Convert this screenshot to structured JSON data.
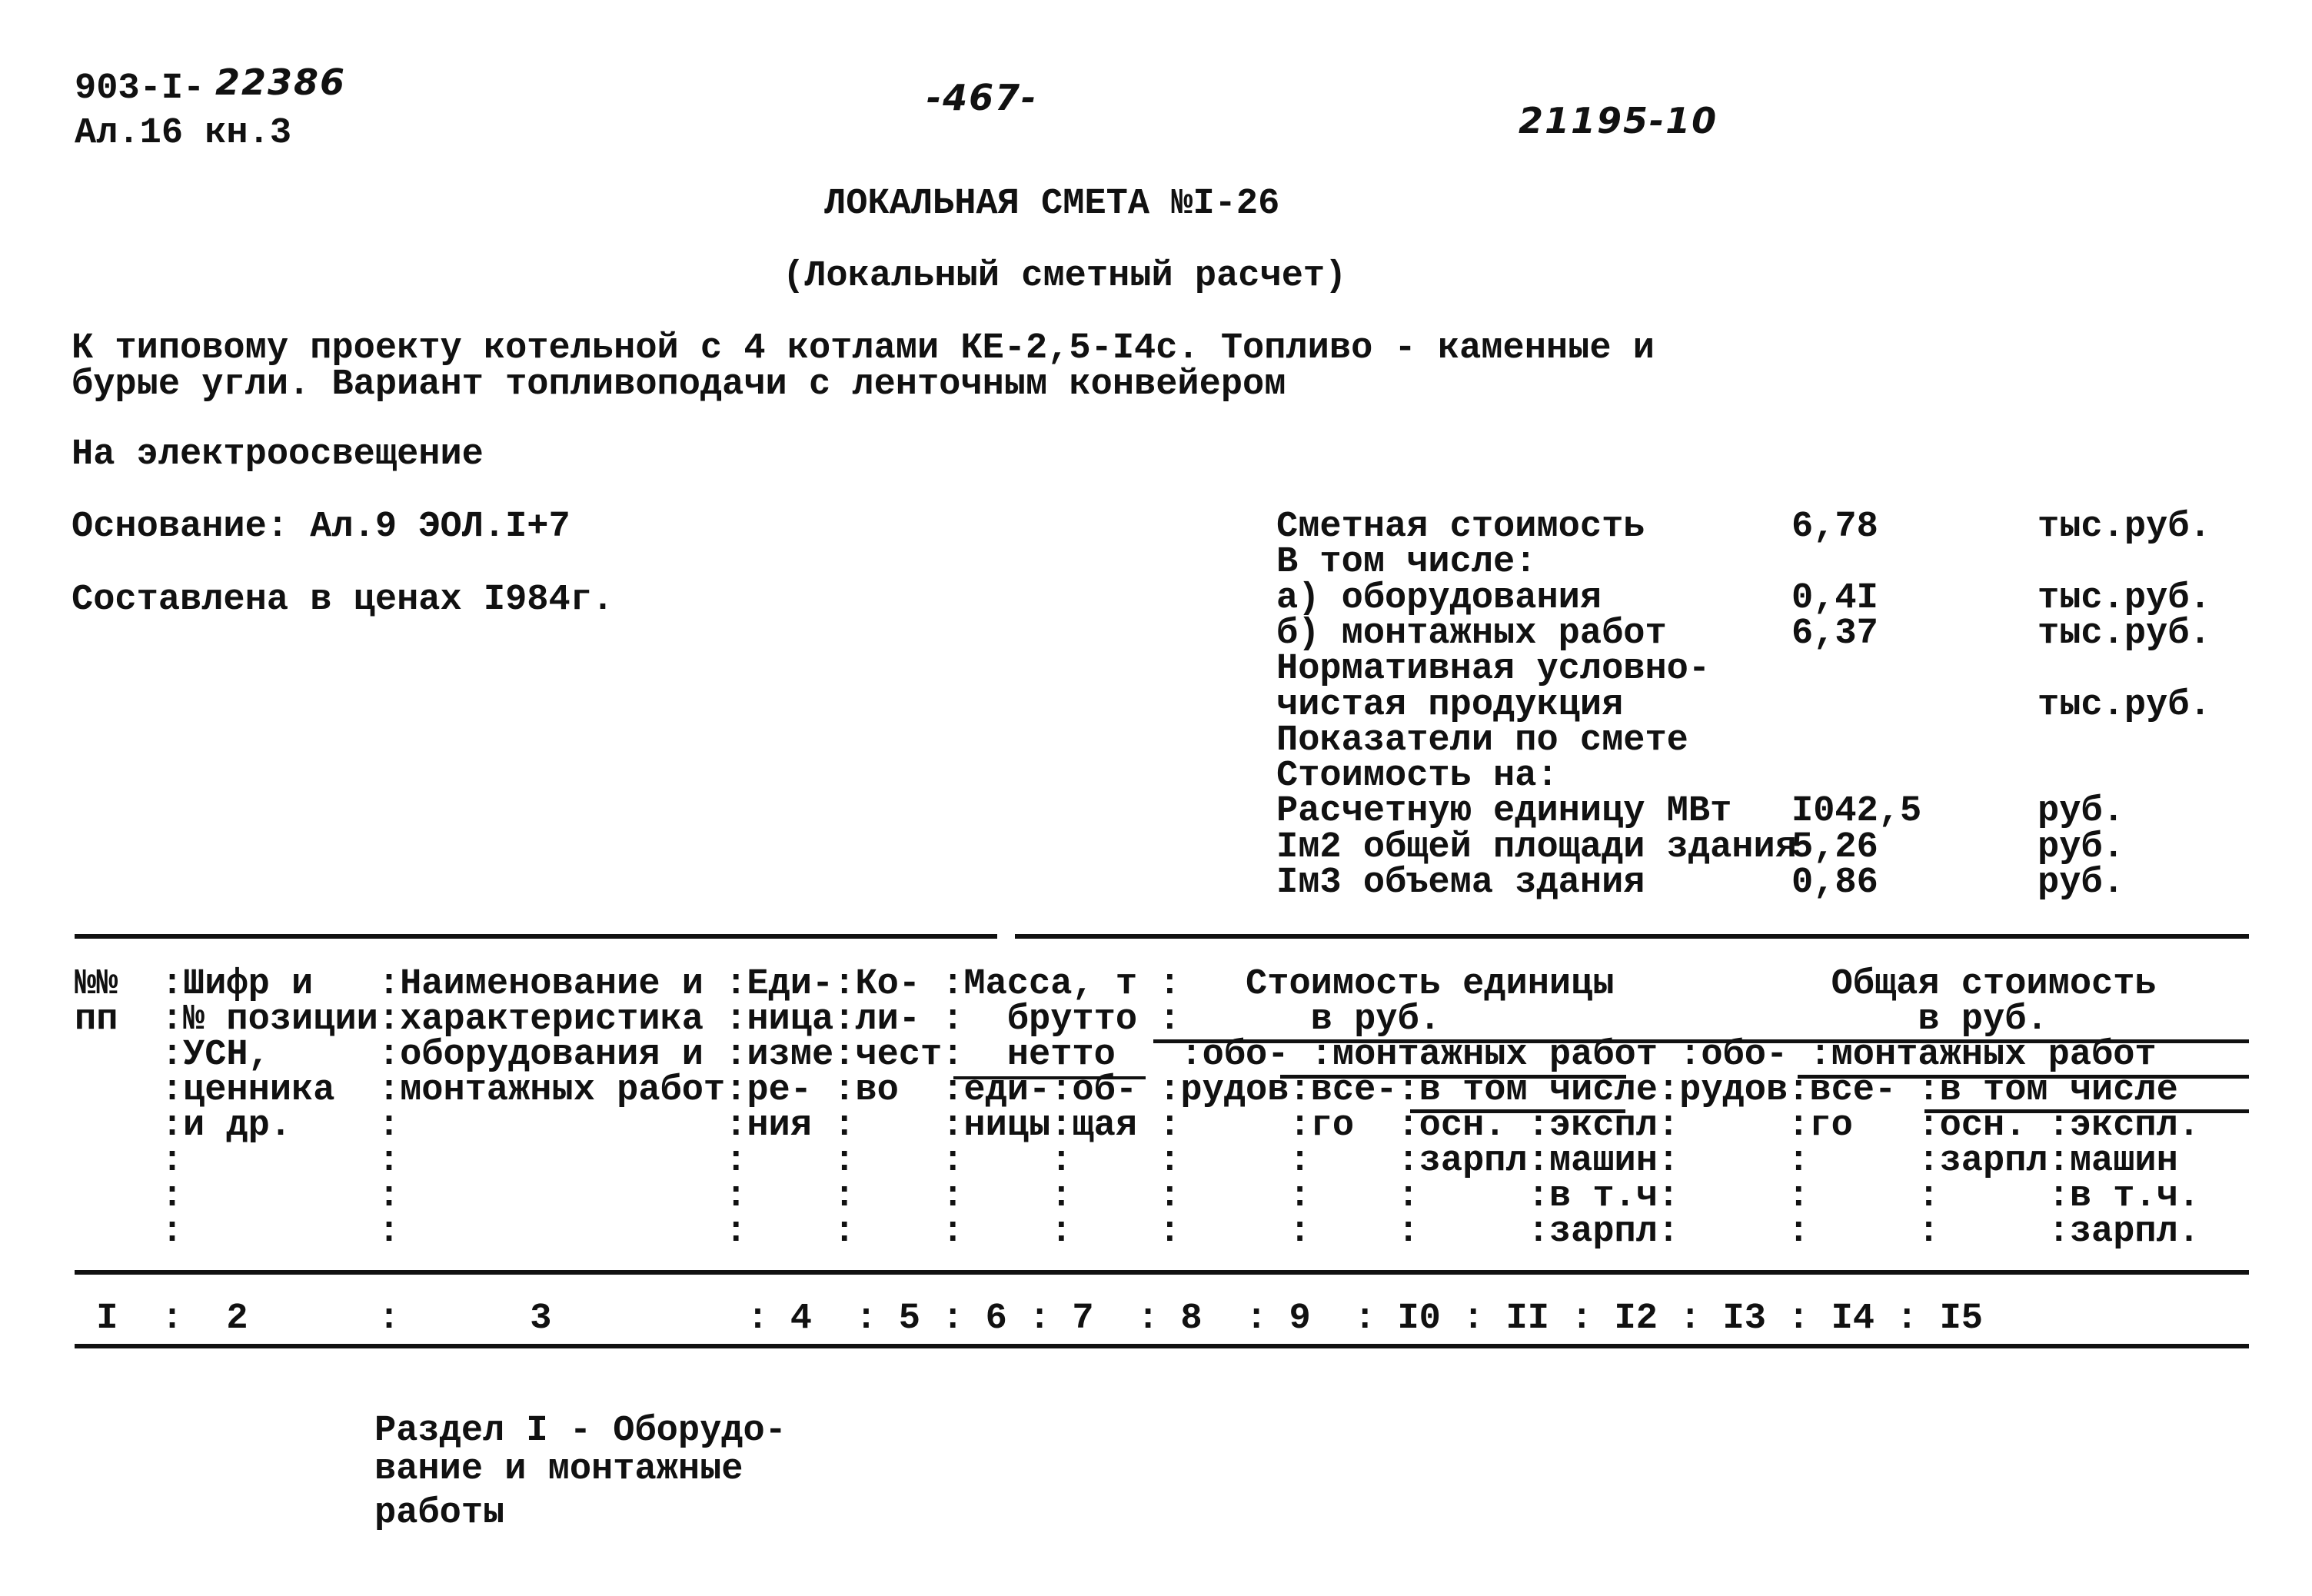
{
  "corner": {
    "code": "903-I-",
    "code_hand": "22386",
    "album": "Ал.16 кн.3"
  },
  "page_number": "-467-",
  "doc_number": "21195-10",
  "title": "ЛОКАЛЬНАЯ СМЕТА №I-26",
  "subtitle": "(Локальный сметный расчет)",
  "description": [
    "К типовому проекту котельной с 4 котлами КЕ-2,5-I4с. Топливо - каменные и",
    "бурые угли. Вариант топливоподачи с ленточным конвейером"
  ],
  "purpose": "На электроосвещение",
  "basis": "Основание: Ал.9 ЭОЛ.I+7",
  "prices": "Составлена в ценах I984г.",
  "summary": [
    {
      "label": "Сметная стоимость",
      "value": "6,78",
      "unit": "тыс.руб."
    },
    {
      "label": "В том числе:",
      "value": "",
      "unit": ""
    },
    {
      "label": "а) оборудования",
      "value": "0,4I",
      "unit": "тыс.руб."
    },
    {
      "label": "б) монтажных работ",
      "value": "6,37",
      "unit": "тыс.руб."
    },
    {
      "label": "Нормативная условно-",
      "value": "",
      "unit": ""
    },
    {
      "label": "чистая продукция",
      "value": "",
      "unit": "тыс.руб."
    },
    {
      "label": "Показатели по смете",
      "value": "",
      "unit": ""
    },
    {
      "label": "Стоимость на:",
      "value": "",
      "unit": ""
    },
    {
      "label": "Расчетную единицу МВт",
      "value": "I042,5",
      "unit": "руб."
    },
    {
      "label": "Iм2 общей площади здания",
      "value": "5,26",
      "unit": "руб."
    },
    {
      "label": "Iм3 объема здания",
      "value": "0,86",
      "unit": "руб."
    }
  ],
  "table_header": [
    "№№  :Шифр и   :Наименование и :Еди-:Ко- :Масса, т :   Стоимость единицы          Общая стоимость",
    "пп  :№ позиции:характеристика :ница:ли- :  брутто :      в руб.                      в руб.",
    "    :УСН,     :оборудования и :изме:чест:  нетто   :обо- :монтажных работ :обо- :монтажных работ",
    "    :ценника  :монтажных работ:ре- :во  :еди-:об- :рудов:все-:в том числе:рудов:все- :в том числе",
    "    :и др.    :               :ния :    :ницы:щая :     :го  :осн. :экспл:     :го   :осн. :экспл.",
    "    :         :               :    :    :    :    :     :    :зарпл:машин:     :     :зарпл:машин",
    "    :         :               :    :    :    :    :     :    :     :в т.ч:     :     :     :в т.ч.",
    "    :         :               :    :    :    :    :     :    :     :зарпл:     :     :     :зарпл."
  ],
  "column_numbers": " I  :  2      :      3         : 4  : 5 : 6 : 7  : 8  : 9  : I0 : II : I2 : I3 : I4 : I5",
  "section": [
    "Раздел I - Оборудо-",
    "вание и монтажные",
    "работы"
  ]
}
